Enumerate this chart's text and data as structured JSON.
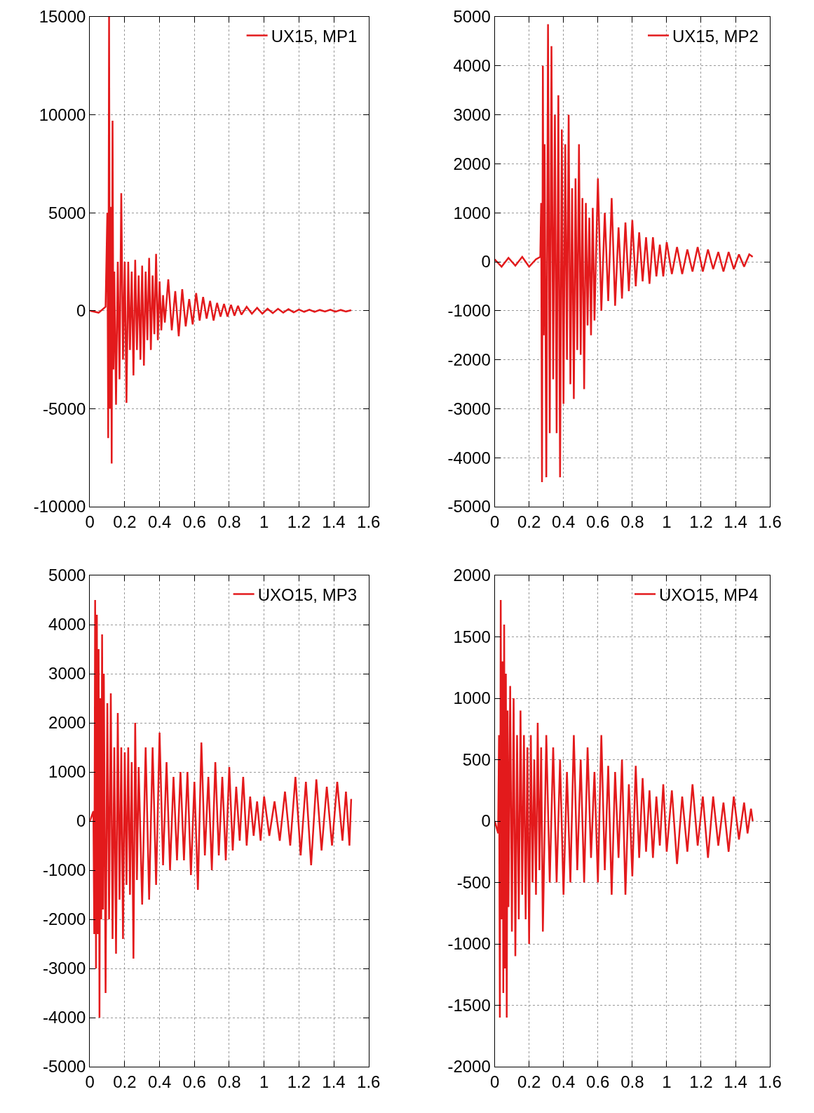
{
  "chart_data": [
    {
      "type": "line",
      "grid": true,
      "legend": "top right",
      "xlim": [
        0,
        1.6
      ],
      "xticks": [
        0,
        0.2,
        0.4,
        0.6,
        0.8,
        1,
        1.2,
        1.4,
        1.6
      ],
      "ylim": [
        -10000,
        15000
      ],
      "yticks": [
        -10000,
        -5000,
        0,
        5000,
        10000,
        15000
      ],
      "x": [
        0,
        0.05,
        0.09,
        0.1,
        0.105,
        0.11,
        0.115,
        0.12,
        0.125,
        0.13,
        0.135,
        0.14,
        0.15,
        0.16,
        0.17,
        0.18,
        0.19,
        0.2,
        0.21,
        0.22,
        0.23,
        0.24,
        0.25,
        0.26,
        0.27,
        0.28,
        0.29,
        0.3,
        0.31,
        0.32,
        0.33,
        0.34,
        0.35,
        0.36,
        0.37,
        0.38,
        0.39,
        0.4,
        0.41,
        0.42,
        0.43,
        0.45,
        0.47,
        0.49,
        0.51,
        0.53,
        0.55,
        0.57,
        0.59,
        0.61,
        0.63,
        0.65,
        0.67,
        0.69,
        0.71,
        0.73,
        0.75,
        0.77,
        0.79,
        0.81,
        0.83,
        0.85,
        0.87,
        0.9,
        0.93,
        0.96,
        0.99,
        1.02,
        1.05,
        1.08,
        1.11,
        1.14,
        1.17,
        1.2,
        1.23,
        1.26,
        1.29,
        1.32,
        1.35,
        1.38,
        1.41,
        1.44,
        1.47,
        1.5
      ],
      "series": [
        {
          "name": "UX15, MP1",
          "color": "#e31a1c",
          "values": [
            0,
            -100,
            200,
            5000,
            -6500,
            15000,
            -5000,
            5300,
            -7800,
            9700,
            -3000,
            2000,
            -4800,
            2500,
            -3500,
            6000,
            -2500,
            2500,
            -4700,
            2500,
            -2000,
            2000,
            -3300,
            2600,
            -2000,
            1800,
            -2500,
            2300,
            -2800,
            2000,
            -1500,
            2700,
            -2000,
            1800,
            -1200,
            2900,
            -1500,
            1500,
            -1000,
            800,
            -600,
            1600,
            -1000,
            1000,
            -1300,
            1100,
            -800,
            600,
            -700,
            900,
            -500,
            700,
            -400,
            500,
            -500,
            400,
            -300,
            350,
            -300,
            300,
            -250,
            250,
            -200,
            200,
            -150,
            150,
            -150,
            100,
            -120,
            100,
            -100,
            80,
            -80,
            60,
            -60,
            50,
            -60,
            40,
            -40,
            50,
            -50,
            40,
            -40,
            30
          ]
        }
      ]
    },
    {
      "type": "line",
      "grid": true,
      "legend": "top right",
      "xlim": [
        0,
        1.6
      ],
      "xticks": [
        0,
        0.2,
        0.4,
        0.6,
        0.8,
        1,
        1.2,
        1.4,
        1.6
      ],
      "ylim": [
        -5000,
        5000
      ],
      "yticks": [
        -5000,
        -4000,
        -3000,
        -2000,
        -1000,
        0,
        1000,
        2000,
        3000,
        4000,
        5000
      ],
      "x": [
        0,
        0.04,
        0.08,
        0.12,
        0.16,
        0.2,
        0.24,
        0.265,
        0.27,
        0.275,
        0.28,
        0.285,
        0.29,
        0.3,
        0.31,
        0.32,
        0.33,
        0.34,
        0.35,
        0.36,
        0.37,
        0.38,
        0.39,
        0.4,
        0.41,
        0.42,
        0.43,
        0.44,
        0.45,
        0.46,
        0.47,
        0.48,
        0.49,
        0.5,
        0.51,
        0.52,
        0.53,
        0.54,
        0.55,
        0.56,
        0.57,
        0.58,
        0.6,
        0.62,
        0.64,
        0.66,
        0.68,
        0.7,
        0.72,
        0.74,
        0.76,
        0.78,
        0.8,
        0.82,
        0.84,
        0.86,
        0.88,
        0.9,
        0.92,
        0.94,
        0.96,
        0.98,
        1.0,
        1.03,
        1.06,
        1.09,
        1.12,
        1.15,
        1.18,
        1.21,
        1.24,
        1.27,
        1.3,
        1.33,
        1.36,
        1.39,
        1.42,
        1.45,
        1.48,
        1.5
      ],
      "series": [
        {
          "name": "UX15, MP2",
          "color": "#e31a1c",
          "values": [
            50,
            -100,
            80,
            -80,
            100,
            -100,
            50,
            100,
            1200,
            -4500,
            4000,
            -1500,
            2400,
            -4400,
            4850,
            -3500,
            4400,
            -2400,
            3000,
            -3500,
            3400,
            -4400,
            2700,
            -2900,
            2400,
            -2000,
            3000,
            -2500,
            1500,
            -2800,
            1700,
            -1800,
            2400,
            -1900,
            1300,
            -2600,
            1200,
            -1300,
            900,
            -1500,
            1100,
            -1200,
            1700,
            -1000,
            1000,
            -800,
            1300,
            -900,
            700,
            -750,
            800,
            -600,
            850,
            -500,
            600,
            -400,
            500,
            -450,
            500,
            -300,
            350,
            -300,
            400,
            -250,
            300,
            -250,
            250,
            -200,
            300,
            -200,
            250,
            -150,
            200,
            -200,
            200,
            -150,
            150,
            -100,
            150,
            100
          ]
        }
      ]
    },
    {
      "type": "line",
      "grid": true,
      "legend": "top right",
      "xlim": [
        0,
        1.6
      ],
      "xticks": [
        0,
        0.2,
        0.4,
        0.6,
        0.8,
        1,
        1.2,
        1.4,
        1.6
      ],
      "ylim": [
        -5000,
        5000
      ],
      "yticks": [
        -5000,
        -4000,
        -3000,
        -2000,
        -1000,
        0,
        1000,
        2000,
        3000,
        4000,
        5000
      ],
      "x": [
        0,
        0.02,
        0.025,
        0.03,
        0.035,
        0.04,
        0.045,
        0.05,
        0.055,
        0.06,
        0.065,
        0.07,
        0.075,
        0.08,
        0.09,
        0.1,
        0.11,
        0.12,
        0.13,
        0.14,
        0.15,
        0.16,
        0.17,
        0.18,
        0.19,
        0.2,
        0.21,
        0.22,
        0.23,
        0.24,
        0.25,
        0.26,
        0.27,
        0.28,
        0.3,
        0.32,
        0.34,
        0.36,
        0.38,
        0.4,
        0.42,
        0.44,
        0.46,
        0.48,
        0.5,
        0.52,
        0.54,
        0.56,
        0.58,
        0.6,
        0.62,
        0.64,
        0.66,
        0.68,
        0.7,
        0.72,
        0.74,
        0.76,
        0.78,
        0.8,
        0.82,
        0.84,
        0.86,
        0.88,
        0.9,
        0.92,
        0.94,
        0.96,
        0.98,
        1.0,
        1.03,
        1.06,
        1.09,
        1.12,
        1.15,
        1.18,
        1.21,
        1.24,
        1.27,
        1.3,
        1.33,
        1.36,
        1.39,
        1.42,
        1.45,
        1.47,
        1.49,
        1.5
      ],
      "series": [
        {
          "name": "UXO15, MP3",
          "color": "#e31a1c",
          "values": [
            0,
            200,
            -2300,
            4500,
            -3000,
            4200,
            -2300,
            3500,
            -4000,
            2500,
            -2000,
            3800,
            -1800,
            3000,
            -3500,
            2400,
            -2000,
            2600,
            -2400,
            1500,
            -2700,
            2200,
            -1600,
            1500,
            -2400,
            1400,
            -1300,
            1500,
            -1500,
            1200,
            -2800,
            2000,
            -1200,
            1100,
            -1700,
            1500,
            -1600,
            1500,
            -1300,
            1800,
            -900,
            1200,
            -1000,
            900,
            -800,
            1000,
            -800,
            1000,
            -1100,
            800,
            -1400,
            1600,
            -700,
            900,
            -1000,
            1200,
            -700,
            900,
            -800,
            1100,
            -600,
            700,
            -400,
            900,
            -500,
            500,
            -300,
            400,
            -400,
            500,
            -300,
            400,
            -400,
            600,
            -500,
            900,
            -700,
            800,
            -900,
            850,
            -600,
            700,
            -500,
            800,
            -400,
            600,
            -500,
            450
          ]
        }
      ]
    },
    {
      "type": "line",
      "grid": true,
      "legend": "top right",
      "xlim": [
        0,
        1.6
      ],
      "xticks": [
        0,
        0.2,
        0.4,
        0.6,
        0.8,
        1,
        1.2,
        1.4,
        1.6
      ],
      "ylim": [
        -2000,
        2000
      ],
      "yticks": [
        -2000,
        -1500,
        -1000,
        -500,
        0,
        500,
        1000,
        1500,
        2000
      ],
      "x": [
        0,
        0.02,
        0.025,
        0.03,
        0.035,
        0.04,
        0.045,
        0.05,
        0.055,
        0.06,
        0.065,
        0.07,
        0.075,
        0.08,
        0.09,
        0.1,
        0.11,
        0.12,
        0.13,
        0.14,
        0.15,
        0.16,
        0.17,
        0.18,
        0.19,
        0.2,
        0.21,
        0.22,
        0.23,
        0.24,
        0.25,
        0.26,
        0.27,
        0.28,
        0.3,
        0.32,
        0.34,
        0.36,
        0.38,
        0.4,
        0.42,
        0.44,
        0.46,
        0.48,
        0.5,
        0.52,
        0.54,
        0.56,
        0.58,
        0.6,
        0.62,
        0.64,
        0.66,
        0.68,
        0.7,
        0.72,
        0.74,
        0.76,
        0.78,
        0.8,
        0.82,
        0.84,
        0.86,
        0.88,
        0.9,
        0.92,
        0.94,
        0.96,
        0.98,
        1.0,
        1.03,
        1.06,
        1.09,
        1.12,
        1.15,
        1.18,
        1.21,
        1.24,
        1.27,
        1.3,
        1.33,
        1.36,
        1.39,
        1.42,
        1.45,
        1.47,
        1.49,
        1.5
      ],
      "series": [
        {
          "name": "UXO15, MP4",
          "color": "#e31a1c",
          "values": [
            0,
            -100,
            700,
            -1600,
            1800,
            -800,
            1300,
            -1400,
            1600,
            -1200,
            1200,
            -1600,
            900,
            -700,
            1100,
            -900,
            1000,
            -1100,
            700,
            -800,
            900,
            -600,
            700,
            -800,
            600,
            -1000,
            700,
            -500,
            500,
            -600,
            800,
            -400,
            600,
            -900,
            700,
            -500,
            600,
            -500,
            500,
            -600,
            400,
            -500,
            700,
            -400,
            500,
            -500,
            600,
            -300,
            400,
            -500,
            700,
            -400,
            450,
            -600,
            400,
            -300,
            500,
            -600,
            300,
            -450,
            450,
            -300,
            350,
            -250,
            250,
            -300,
            200,
            -200,
            300,
            -250,
            250,
            -350,
            200,
            -250,
            300,
            -200,
            200,
            -300,
            200,
            -200,
            150,
            -250,
            200,
            -150,
            150,
            -100,
            100,
            0
          ]
        }
      ]
    }
  ]
}
